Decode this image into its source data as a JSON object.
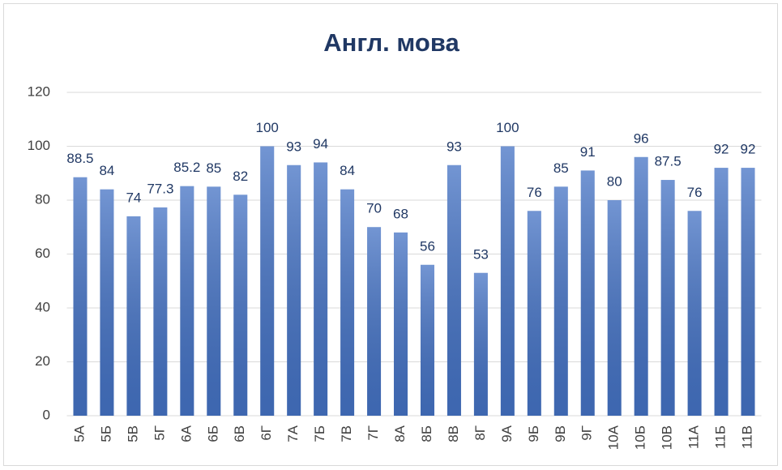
{
  "chart_data": {
    "type": "bar",
    "title": "Англ. мова",
    "categories": [
      "5А",
      "5Б",
      "5В",
      "5Г",
      "6А",
      "6Б",
      "6В",
      "6Г",
      "7А",
      "7Б",
      "7В",
      "7Г",
      "8А",
      "8Б",
      "8В",
      "8Г",
      "9А",
      "9Б",
      "9В",
      "9Г",
      "10А",
      "10Б",
      "10В",
      "11А",
      "11Б",
      "11В"
    ],
    "values": [
      88.5,
      84,
      74,
      77.3,
      85.2,
      85,
      82,
      100,
      93,
      94,
      84,
      70,
      68,
      56,
      93,
      53,
      100,
      76,
      85,
      91,
      80,
      96,
      87.5,
      76,
      92,
      92
    ],
    "color": "#4472c4",
    "ylim": [
      0,
      120
    ],
    "yticks": [
      0,
      20,
      40,
      60,
      80,
      100,
      120
    ],
    "grid": true
  }
}
